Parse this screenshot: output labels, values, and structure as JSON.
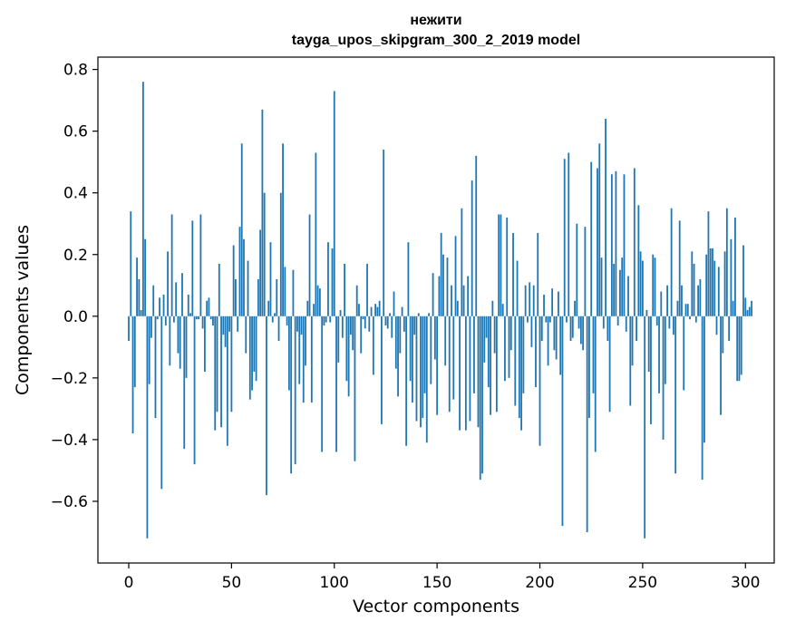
{
  "chart_data": {
    "type": "bar",
    "title": "нежити",
    "subtitle": "tayga_upos_skipgram_300_2_2019 model",
    "xlabel": "Vector components",
    "ylabel": "Components values",
    "xlim": [
      -15,
      314
    ],
    "ylim": [
      -0.8,
      0.84
    ],
    "xticks": [
      0,
      50,
      100,
      150,
      200,
      250,
      300
    ],
    "yticks": [
      -0.6,
      -0.4,
      -0.2,
      0.0,
      0.2,
      0.4,
      0.6,
      0.8
    ],
    "xtick_labels": [
      "0",
      "50",
      "100",
      "150",
      "200",
      "250",
      "300"
    ],
    "ytick_labels": [
      "−0.6",
      "−0.4",
      "−0.2",
      "0.0",
      "0.2",
      "0.4",
      "0.6",
      "0.8"
    ],
    "color": "#1f77b4",
    "values": [
      -0.08,
      0.34,
      -0.38,
      -0.23,
      0.19,
      0.12,
      0.02,
      0.76,
      0.25,
      -0.72,
      -0.22,
      -0.07,
      0.1,
      -0.33,
      -0.01,
      0.06,
      -0.56,
      0.07,
      -0.03,
      0.21,
      -0.16,
      0.33,
      -0.02,
      0.11,
      -0.12,
      -0.17,
      0.14,
      -0.43,
      -0.2,
      0.07,
      0.01,
      0.31,
      -0.48,
      -0.01,
      -0.01,
      0.33,
      -0.04,
      -0.18,
      0.05,
      0.06,
      -0.01,
      -0.03,
      -0.37,
      -0.31,
      0.17,
      -0.36,
      -0.06,
      -0.1,
      -0.42,
      -0.05,
      -0.31,
      0.23,
      0.12,
      -0.05,
      0.29,
      0.56,
      0.25,
      -0.12,
      0.18,
      -0.27,
      -0.24,
      -0.18,
      -0.21,
      0.12,
      0.28,
      0.67,
      0.4,
      -0.58,
      0.05,
      0.24,
      -0.02,
      0.01,
      0.12,
      -0.08,
      0.4,
      0.56,
      0.16,
      -0.03,
      -0.24,
      -0.51,
      0.15,
      -0.48,
      -0.05,
      -0.22,
      -0.06,
      -0.28,
      -0.16,
      0.05,
      0.33,
      -0.28,
      0.04,
      0.53,
      0.1,
      0.09,
      -0.44,
      -0.03,
      -0.02,
      0.24,
      -0.02,
      0.22,
      0.73,
      -0.44,
      -0.15,
      0.02,
      -0.07,
      0.17,
      -0.21,
      -0.26,
      -0.06,
      -0.11,
      -0.47,
      0.1,
      0.04,
      -0.12,
      -0.01,
      -0.04,
      0.17,
      -0.05,
      0.03,
      -0.19,
      0.04,
      0.03,
      0.05,
      -0.35,
      0.54,
      -0.03,
      -0.04,
      0.01,
      -0.07,
      0.08,
      -0.17,
      -0.26,
      -0.12,
      0.03,
      -0.05,
      -0.42,
      0.24,
      -0.21,
      -0.28,
      -0.06,
      -0.34,
      0.01,
      -0.36,
      -0.33,
      -0.25,
      -0.41,
      0.01,
      -0.22,
      0.14,
      -0.14,
      -0.32,
      0.13,
      0.27,
      0.2,
      -0.16,
      0.19,
      -0.31,
      0.1,
      -0.27,
      0.26,
      0.05,
      -0.37,
      0.35,
      0.1,
      -0.37,
      0.13,
      -0.34,
      0.44,
      -0.25,
      0.52,
      -0.36,
      -0.53,
      -0.51,
      -0.15,
      -0.07,
      -0.23,
      -0.32,
      0.05,
      -0.12,
      -0.31,
      0.33,
      0.33,
      0.04,
      -0.21,
      0.32,
      -0.2,
      -0.11,
      0.27,
      -0.29,
      0.18,
      -0.33,
      -0.37,
      -0.25,
      0.1,
      -0.02,
      0.11,
      -0.1,
      0.1,
      -0.23,
      0.27,
      -0.42,
      -0.08,
      0.07,
      -0.02,
      -0.16,
      -0.02,
      0.09,
      -0.11,
      -0.14,
      0.08,
      -0.19,
      -0.68,
      0.51,
      -0.02,
      0.53,
      -0.08,
      -0.07,
      0.05,
      0.3,
      -0.04,
      -0.09,
      -0.11,
      0.29,
      -0.7,
      -0.33,
      0.5,
      -0.25,
      -0.44,
      0.48,
      0.56,
      0.19,
      -0.04,
      0.64,
      -0.08,
      -0.31,
      0.46,
      0.17,
      0.47,
      -0.03,
      0.15,
      0.19,
      0.46,
      -0.05,
      0.13,
      -0.29,
      -0.16,
      0.48,
      -0.08,
      0.36,
      0.21,
      0.18,
      -0.72,
      0.02,
      -0.18,
      -0.35,
      0.2,
      0.19,
      -0.03,
      -0.25,
      0.08,
      -0.4,
      -0.22,
      0.1,
      -0.04,
      0.35,
      -0.06,
      -0.51,
      0.05,
      0.31,
      0.1,
      -0.24,
      0.04,
      0.04,
      -0.01,
      0.21,
      0.17,
      -0.02,
      0.1,
      0.12,
      -0.53,
      -0.41,
      0.2,
      0.34,
      0.22,
      0.22,
      0.18,
      -0.06,
      0.16,
      -0.32,
      -0.12,
      0.21,
      0.35,
      -0.08,
      0.25,
      0.05,
      0.32,
      -0.21,
      -0.21,
      -0.19,
      0.23,
      0.06,
      0.02,
      0.03,
      0.05
    ]
  }
}
